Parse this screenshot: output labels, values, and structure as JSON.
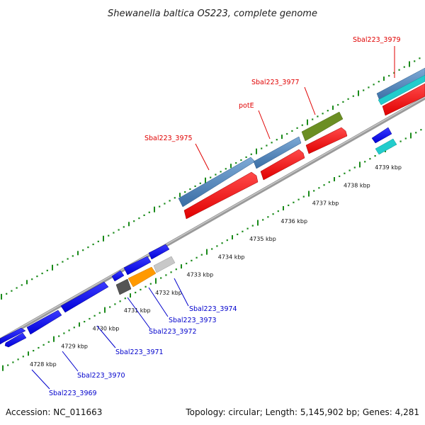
{
  "title": "Shewanella baltica OS223, complete genome",
  "footer": {
    "accession": "Accession: NC_011663",
    "summary": "Topology: circular; Length: 5,145,902 bp; Genes: 4,281"
  },
  "kbp_ticks": [
    "4728 kbp",
    "4729 kbp",
    "4730 kbp",
    "4731 kbp",
    "4732 kbp",
    "4733 kbp",
    "4734 kbp",
    "4735 kbp",
    "4736 kbp",
    "4737 kbp",
    "4738 kbp",
    "4739 kbp"
  ],
  "gene_labels": {
    "Sbal223_3979": "Sbal223_3979",
    "Sbal223_3977": "Sbal223_3977",
    "potE": "potE",
    "Sbal223_3975": "Sbal223_3975",
    "Sbal223_3974": "Sbal223_3974",
    "Sbal223_3973": "Sbal223_3973",
    "Sbal223_3972": "Sbal223_3972",
    "Sbal223_3971": "Sbal223_3971",
    "Sbal223_3970": "Sbal223_3970",
    "Sbal223_3969": "Sbal223_3969"
  },
  "colors": {
    "cds_blue": "#0000ee",
    "steel_blue": "#4a7fb5",
    "red": "#ff0000",
    "olive": "#6b8e23",
    "cyan": "#22cccc",
    "orange": "#ff9900",
    "dark_gray": "#555555",
    "light_gray": "#c8c8c8",
    "tick_green": "#1a8a1a",
    "backbone": "#888888"
  }
}
